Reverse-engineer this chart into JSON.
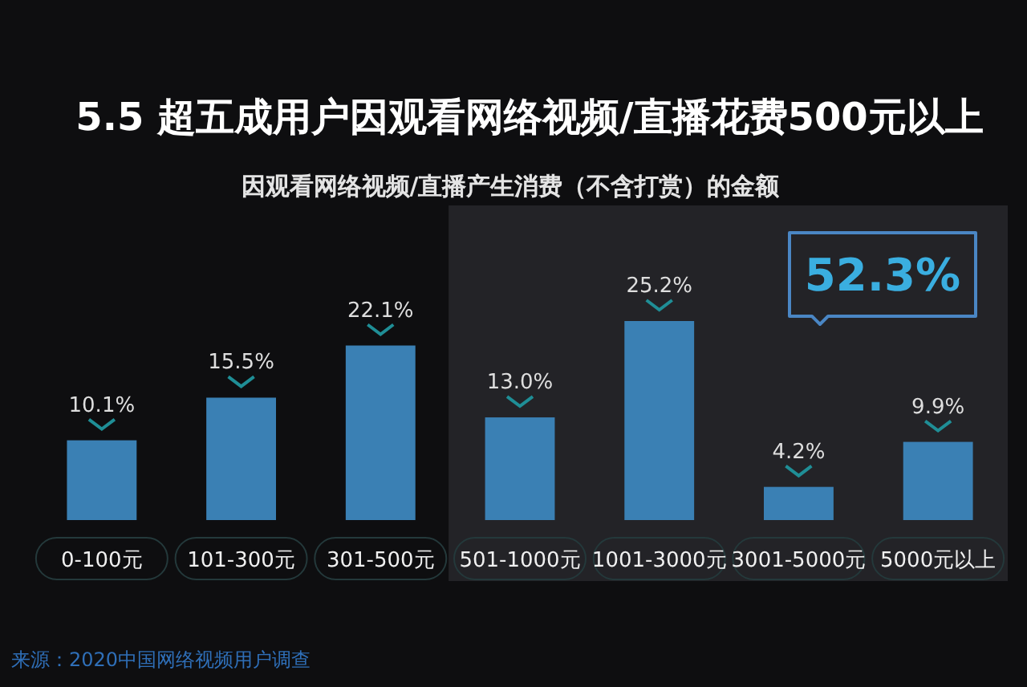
{
  "chart_data": {
    "type": "bar",
    "title": "5.5 超五成用户因观看网络视频/直播花费500元以上",
    "subtitle": "因观看网络视频/直播产生消费（不含打赏）的金额",
    "categories": [
      "0-100元",
      "101-300元",
      "301-500元",
      "501-1000元",
      "1001-3000元",
      "3001-5000元",
      "5000元以上"
    ],
    "values": [
      10.1,
      15.5,
      22.1,
      13.0,
      25.2,
      4.2,
      9.9
    ],
    "value_labels": [
      "10.1%",
      "15.5%",
      "22.1%",
      "13.0%",
      "25.2%",
      "4.2%",
      "9.9%"
    ],
    "color": "#3a80b4",
    "bands": [
      {
        "axis": "x",
        "from": "501-1000元",
        "to": "5000元以上",
        "label": "52.3%",
        "color": "#232327"
      }
    ],
    "annotations": [
      "来源：2020中国网络视频用户调查"
    ]
  }
}
